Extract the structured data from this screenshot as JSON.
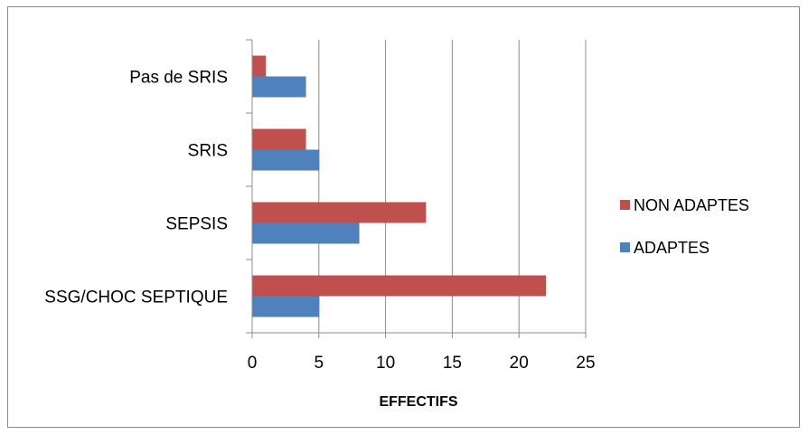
{
  "chart_data": {
    "type": "bar",
    "orientation": "horizontal",
    "title": "",
    "xlabel": "EFFECTIFS",
    "ylabel": "",
    "categories": [
      "SSG/CHOC SEPTIQUE",
      "SEPSIS",
      "SRIS",
      "Pas de SRIS"
    ],
    "series": [
      {
        "name": "ADAPTES",
        "values": [
          5,
          8,
          5,
          4
        ],
        "color": "#4f81bd"
      },
      {
        "name": "NON ADAPTES",
        "values": [
          22,
          13,
          4,
          1
        ],
        "color": "#c0504d"
      }
    ],
    "xlim": [
      0,
      25
    ],
    "xticks": [
      "0",
      "5",
      "10",
      "15",
      "20",
      "25"
    ],
    "grid": "vertical",
    "legend_position": "right"
  }
}
